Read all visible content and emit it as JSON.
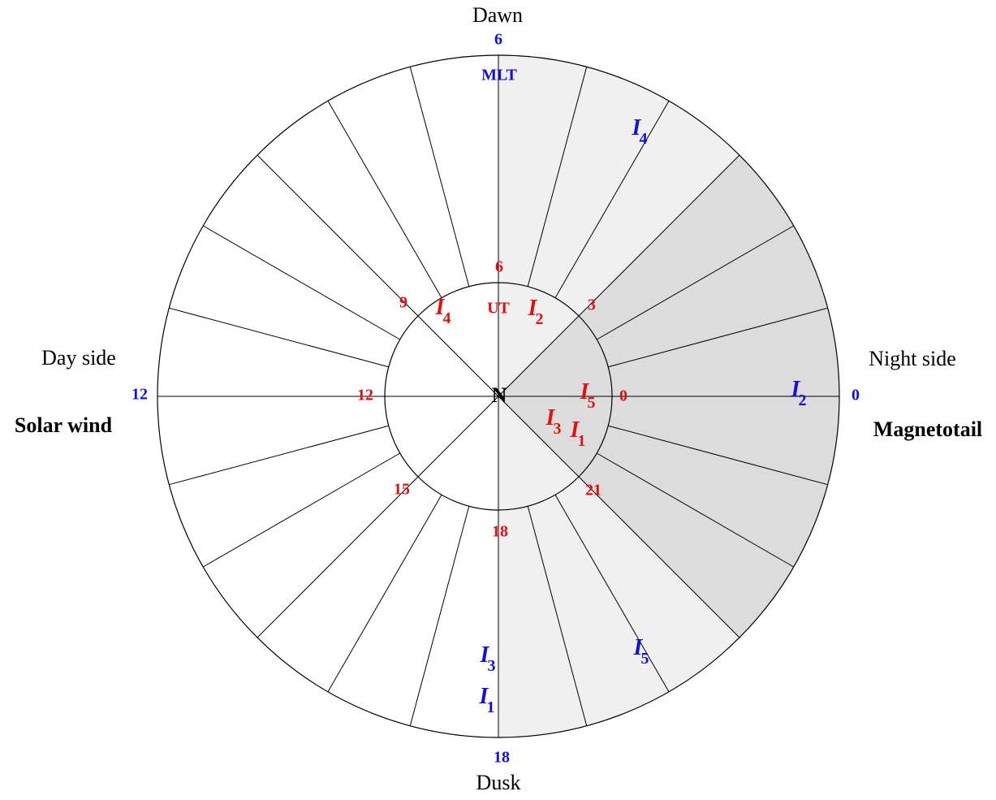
{
  "labels": {
    "top": "Dawn",
    "bottom": "Dusk",
    "left": "Day side",
    "right": "Night side",
    "left_bold": "Solar wind",
    "right_bold": "Magnetotail",
    "center": "N"
  },
  "mlt": {
    "title": "MLT",
    "ticks": [
      "6",
      "12",
      "18",
      "0"
    ]
  },
  "ut": {
    "title": "UT",
    "ticks": [
      "6",
      "9",
      "3",
      "12",
      "0",
      "15",
      "21",
      "18"
    ]
  },
  "mlt_markers": [
    {
      "letter": "I",
      "index": "4"
    },
    {
      "letter": "I",
      "index": "2"
    },
    {
      "letter": "I",
      "index": "5"
    },
    {
      "letter": "I",
      "index": "3"
    },
    {
      "letter": "I",
      "index": "1"
    }
  ],
  "ut_markers": [
    {
      "letter": "I",
      "index": "4"
    },
    {
      "letter": "I",
      "index": "2"
    },
    {
      "letter": "I",
      "index": "5"
    },
    {
      "letter": "I",
      "index": "3"
    },
    {
      "letter": "I",
      "index": "1"
    }
  ]
}
